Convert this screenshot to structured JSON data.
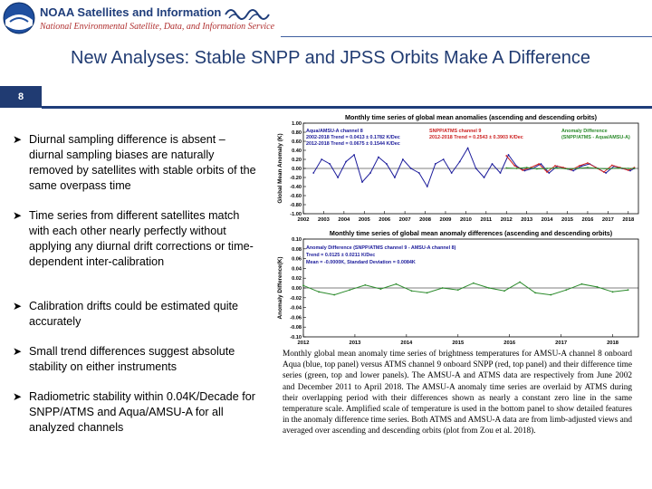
{
  "header": {
    "org_name": "NOAA Satellites and Information",
    "org_subtitle": "National Environmental Satellite, Data, and Information Service",
    "colors": {
      "navy": "#1f3d7a",
      "red": "#b03030"
    }
  },
  "slide": {
    "number": "8",
    "title": "New Analyses: Stable SNPP and JPSS Orbits Make A Difference"
  },
  "bullets": [
    "Diurnal sampling difference is absent – diurnal sampling biases are naturally removed by satellites with stable orbits of the same overpass time",
    "Time series from different satellites match with each other nearly perfectly without applying any diurnal drift corrections or time-dependent inter-calibration",
    "Calibration drifts could be estimated quite accurately",
    "Small trend differences suggest absolute stability on either instruments",
    "Radiometric stability within 0.04K/Decade for SNPP/ATMS and Aqua/AMSU-A for all analyzed channels"
  ],
  "chart_data": [
    {
      "type": "line",
      "title": "Monthly time series of global mean anomalies (ascending and descending orbits)",
      "ylabel": "Global Mean Anomaly (K)",
      "ylim": [
        -1.0,
        1.0
      ],
      "xlim": [
        2002,
        2018.5
      ],
      "x_ticks": [
        "2002",
        "2003",
        "2004",
        "2005",
        "2006",
        "2007",
        "2008",
        "2009",
        "2010",
        "2011",
        "2012",
        "2013",
        "2014",
        "2015",
        "2016",
        "2017",
        "2018"
      ],
      "y_ticks": [
        "1.00",
        "0.80",
        "0.60",
        "0.40",
        "0.20",
        "0.00",
        "-0.20",
        "-0.40",
        "-0.60",
        "-0.80",
        "-1.00"
      ],
      "legend": [
        {
          "text": "Aqua/AMSU-A channel 8",
          "color": "#1a1a9a"
        },
        {
          "text": "2002-2018 Trend = 0.0413 ± 0.1782 K/Dec",
          "color": "#1a1a9a"
        },
        {
          "text": "2012-2018 Trend = 0.0675 ± 0.1544 K/Dec",
          "color": "#1a1a9a"
        },
        {
          "text": "SNPP/ATMS channel 9",
          "color": "#cc2020"
        },
        {
          "text": "2012-2018 Trend = 0.2543 ± 0.3903 K/Dec",
          "color": "#cc2020"
        },
        {
          "text": "Anomaly Difference",
          "color": "#2a8a2a"
        },
        {
          "text": "(SNPP/ATMS - Aqua/AMSU-A)",
          "color": "#2a8a2a"
        }
      ],
      "series": [
        {
          "name": "Aqua/AMSU-A channel 8",
          "color": "#1a1a9a",
          "x": [
            2002.5,
            2002.9,
            2003.3,
            2003.7,
            2004.1,
            2004.5,
            2004.9,
            2005.3,
            2005.7,
            2006.1,
            2006.5,
            2006.9,
            2007.3,
            2007.7,
            2008.1,
            2008.5,
            2008.9,
            2009.3,
            2009.7,
            2010.1,
            2010.5,
            2010.9,
            2011.3,
            2011.7,
            2012.1,
            2012.5,
            2012.9,
            2013.3,
            2013.7,
            2014.1,
            2014.5,
            2014.9,
            2015.3,
            2015.7,
            2016.1,
            2016.5,
            2016.9,
            2017.3,
            2017.7,
            2018.1,
            2018.3
          ],
          "y": [
            -0.1,
            0.2,
            0.1,
            -0.2,
            0.15,
            0.3,
            -0.3,
            -0.1,
            0.25,
            0.1,
            -0.2,
            0.2,
            0.0,
            -0.1,
            -0.4,
            0.1,
            0.2,
            -0.1,
            0.15,
            0.45,
            0.0,
            -0.2,
            0.1,
            -0.1,
            0.3,
            0.05,
            -0.05,
            0.0,
            0.1,
            -0.1,
            0.05,
            0.0,
            -0.05,
            0.05,
            0.1,
            0.0,
            -0.1,
            0.05,
            0.0,
            -0.05,
            0.0
          ]
        },
        {
          "name": "SNPP/ATMS channel 9",
          "color": "#cc2020",
          "x": [
            2012.0,
            2012.4,
            2012.8,
            2013.2,
            2013.6,
            2014.0,
            2014.4,
            2014.8,
            2015.2,
            2015.6,
            2016.0,
            2016.4,
            2016.8,
            2017.2,
            2017.6,
            2018.0,
            2018.3
          ],
          "y": [
            0.28,
            0.06,
            -0.04,
            0.02,
            0.1,
            -0.08,
            0.06,
            0.02,
            -0.03,
            0.06,
            0.12,
            0.02,
            -0.08,
            0.07,
            0.02,
            -0.04,
            0.02
          ]
        },
        {
          "name": "Anomaly Difference",
          "color": "#2a8a2a",
          "x": [
            2012.0,
            2012.5,
            2013.0,
            2013.5,
            2014.0,
            2014.5,
            2015.0,
            2015.5,
            2016.0,
            2016.5,
            2017.0,
            2017.5,
            2018.0,
            2018.3
          ],
          "y": [
            0.01,
            0.0,
            0.02,
            -0.01,
            0.0,
            0.01,
            -0.01,
            0.0,
            0.02,
            0.0,
            -0.01,
            0.01,
            0.0,
            0.0
          ]
        }
      ]
    },
    {
      "type": "line",
      "title": "Monthly time series of global mean anomaly differences (ascending and descending orbits)",
      "ylabel": "Anomaly Difference(K)",
      "ylim": [
        -0.1,
        0.1
      ],
      "xlim": [
        2012,
        2018.5
      ],
      "x_ticks": [
        "2012",
        "2013",
        "2014",
        "2015",
        "2016",
        "2017",
        "2018"
      ],
      "y_ticks": [
        "0.10",
        "0.08",
        "0.06",
        "0.04",
        "0.02",
        "0.00",
        "-0.02",
        "-0.04",
        "-0.06",
        "-0.08",
        "-0.10"
      ],
      "legend": [
        {
          "text": "Anomaly Difference (SNPP/ATMS channel 9 - AMSU-A channel 8)",
          "color": "#1a1a9a"
        },
        {
          "text": "Trend = 0.0125 ± 0.0211 K/Dec",
          "color": "#1a1a9a"
        },
        {
          "text": "Mean = -0.0000K, Standard Deviation = 0.0084K",
          "color": "#1a1a9a"
        }
      ],
      "series": [
        {
          "name": "Anomaly Difference",
          "color": "#2a8a2a",
          "x": [
            2012.0,
            2012.3,
            2012.6,
            2012.9,
            2013.2,
            2013.5,
            2013.8,
            2014.1,
            2014.4,
            2014.7,
            2015.0,
            2015.3,
            2015.6,
            2015.9,
            2016.2,
            2016.5,
            2016.8,
            2017.1,
            2017.4,
            2017.7,
            2018.0,
            2018.3
          ],
          "y": [
            0.005,
            -0.008,
            -0.014,
            -0.004,
            0.006,
            -0.002,
            0.008,
            -0.006,
            -0.01,
            0.0,
            -0.004,
            0.01,
            0.0,
            -0.006,
            0.012,
            -0.01,
            -0.014,
            -0.004,
            0.008,
            0.002,
            -0.008,
            -0.004
          ]
        }
      ]
    }
  ],
  "caption": "Monthly global mean anomaly time series of brightness temperatures for AMSU-A channel 8 onboard Aqua (blue, top panel) versus ATMS channel 9 onboard SNPP (red, top panel) and their difference time series (green, top and lower panels). The AMSU-A and ATMS data are respectively from June 2002 and December 2011 to April 2018. The AMSU-A anomaly time series are overlaid by ATMS during their overlapping period with their differences shown as nearly a constant zero line in the same temperature scale. Amplified scale of temperature is used in the bottom panel to show detailed features in the anomaly difference time series. Both ATMS and AMSU-A data are from limb-adjusted views and averaged over ascending and descending orbits (plot from Zou et al. 2018)."
}
